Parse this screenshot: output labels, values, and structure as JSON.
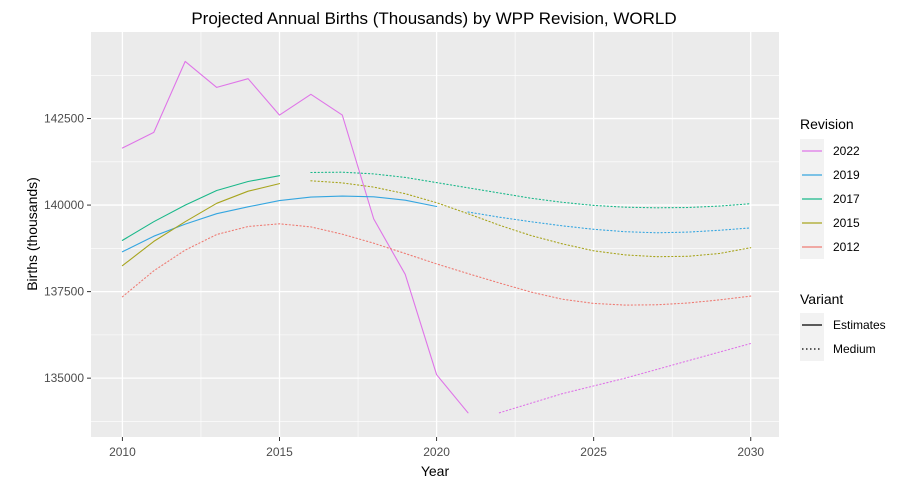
{
  "chart_data": {
    "type": "line",
    "title": "Projected Annual Births (Thousands) by WPP Revision, WORLD",
    "xlabel": "Year",
    "ylabel": "Births (thousands)",
    "xlim": [
      2009.0,
      2030.9
    ],
    "ylim": [
      133300,
      145000
    ],
    "xticks": [
      2010,
      2015,
      2020,
      2025,
      2030
    ],
    "yticks": [
      135000,
      137500,
      140000,
      142500
    ],
    "grid": true,
    "background": "#ebebeb",
    "legend": {
      "position": "right",
      "revision_title": "Revision",
      "revision_entries": [
        {
          "label": "2022",
          "color": "#df75e8"
        },
        {
          "label": "2019",
          "color": "#35a6e0"
        },
        {
          "label": "2017",
          "color": "#1ab88a"
        },
        {
          "label": "2015",
          "color": "#a8a51f"
        },
        {
          "label": "2012",
          "color": "#ee7c74"
        }
      ],
      "variant_title": "Variant",
      "variant_entries": [
        {
          "label": "Estimates",
          "dash": "solid"
        },
        {
          "label": "Medium",
          "dash": "dotted"
        }
      ]
    },
    "series": [
      {
        "revision": "2022",
        "variant": "Estimates",
        "color": "#df75e8",
        "x": [
          2010,
          2011,
          2012,
          2013,
          2014,
          2015,
          2016,
          2017,
          2018,
          2019,
          2020,
          2021
        ],
        "y": [
          141650,
          142100,
          144150,
          143400,
          143650,
          142600,
          143200,
          142600,
          139600,
          138000,
          135100,
          134000
        ]
      },
      {
        "revision": "2022",
        "variant": "Medium",
        "color": "#df75e8",
        "x": [
          2022,
          2024,
          2026,
          2028,
          2030
        ],
        "y": [
          134000,
          134550,
          135000,
          135500,
          136000
        ]
      },
      {
        "revision": "2019",
        "variant": "Estimates",
        "color": "#35a6e0",
        "x": [
          2010,
          2011,
          2012,
          2013,
          2014,
          2015,
          2016,
          2017,
          2018,
          2019,
          2020
        ],
        "y": [
          138650,
          139100,
          139450,
          139750,
          139950,
          140130,
          140230,
          140260,
          140240,
          140140,
          139960
        ]
      },
      {
        "revision": "2019",
        "variant": "Medium",
        "color": "#35a6e0",
        "x": [
          2021,
          2022,
          2023,
          2024,
          2025,
          2026,
          2027,
          2028,
          2029,
          2030
        ],
        "y": [
          139800,
          139650,
          139520,
          139400,
          139300,
          139230,
          139200,
          139220,
          139270,
          139340
        ]
      },
      {
        "revision": "2017",
        "variant": "Estimates",
        "color": "#1ab88a",
        "x": [
          2010,
          2011,
          2012,
          2013,
          2014,
          2015
        ],
        "y": [
          138980,
          139520,
          140000,
          140420,
          140680,
          140850
        ]
      },
      {
        "revision": "2017",
        "variant": "Medium",
        "color": "#1ab88a",
        "x": [
          2016,
          2017,
          2018,
          2019,
          2020,
          2021,
          2022,
          2023,
          2024,
          2025,
          2026,
          2027,
          2028,
          2029,
          2030
        ],
        "y": [
          140940,
          140950,
          140900,
          140800,
          140650,
          140500,
          140350,
          140200,
          140080,
          139990,
          139940,
          139920,
          139930,
          139970,
          140040
        ]
      },
      {
        "revision": "2015",
        "variant": "Estimates",
        "color": "#a8a51f",
        "x": [
          2010,
          2011,
          2012,
          2013,
          2014,
          2015
        ],
        "y": [
          138250,
          138950,
          139520,
          140050,
          140400,
          140620
        ]
      },
      {
        "revision": "2015",
        "variant": "Medium",
        "color": "#a8a51f",
        "x": [
          2016,
          2017,
          2018,
          2019,
          2020,
          2021,
          2022,
          2023,
          2024,
          2025,
          2026,
          2027,
          2028,
          2029,
          2030
        ],
        "y": [
          140700,
          140640,
          140520,
          140330,
          140070,
          139750,
          139420,
          139120,
          138880,
          138680,
          138560,
          138510,
          138520,
          138600,
          138770
        ]
      },
      {
        "revision": "2012",
        "variant": "Medium",
        "color": "#ee7c74",
        "x": [
          2010,
          2011,
          2012,
          2013,
          2014,
          2015,
          2016,
          2017,
          2018,
          2019,
          2020,
          2021,
          2022,
          2023,
          2024,
          2025,
          2026,
          2027,
          2028,
          2029,
          2030
        ],
        "y": [
          137350,
          138100,
          138700,
          139150,
          139380,
          139460,
          139370,
          139160,
          138900,
          138600,
          138300,
          138020,
          137750,
          137490,
          137280,
          137160,
          137110,
          137120,
          137170,
          137260,
          137370
        ]
      }
    ]
  }
}
